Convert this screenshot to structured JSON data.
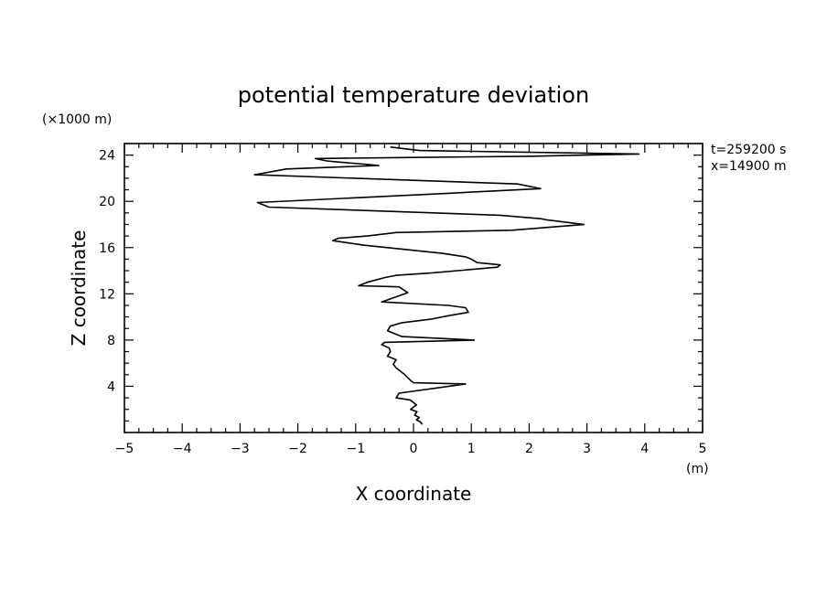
{
  "chart_data": {
    "type": "line",
    "title": "potential temperature deviation",
    "xlabel": "X coordinate",
    "ylabel": "Z coordinate",
    "x_unit": "(m)",
    "y_unit": "(×1000 m)",
    "annotations": [
      "t=259200 s",
      "x=14900 m"
    ],
    "xlim": [
      -5,
      5
    ],
    "ylim": [
      0,
      25
    ],
    "x_ticks": [
      -5,
      -4,
      -3,
      -2,
      -1,
      0,
      1,
      2,
      3,
      4,
      5
    ],
    "x_tick_labels": [
      "−5",
      "−4",
      "−3",
      "−2",
      "−1",
      "0",
      "1",
      "2",
      "3",
      "4",
      "5"
    ],
    "y_ticks": [
      4,
      8,
      12,
      16,
      20,
      24
    ],
    "y_tick_labels": [
      "4",
      "8",
      "12",
      "16",
      "20",
      "24"
    ],
    "grid": false,
    "color": "#000000",
    "series": [
      {
        "x": [
          0.15,
          0.12,
          0.05,
          0.1,
          0.02,
          0.06,
          -0.05,
          0.05,
          -0.05,
          -0.3,
          -0.25,
          0.9,
          0.0,
          -0.05,
          -0.15,
          -0.3,
          -0.35,
          -0.3,
          -0.45,
          -0.4,
          -0.42,
          -0.55,
          -0.5,
          1.05,
          -0.2,
          -0.45,
          -0.4,
          -0.2,
          0.3,
          0.6,
          0.95,
          0.9,
          0.6,
          -0.55,
          -0.1,
          -0.25,
          -0.95,
          -0.8,
          -0.5,
          -0.3,
          0.3,
          1.45,
          1.5,
          1.1,
          1.0,
          0.9,
          0.5,
          -0.85,
          -1.4,
          -1.3,
          -0.8,
          -0.3,
          1.7,
          2.95,
          2.3,
          2.2,
          1.5,
          -2.5,
          -2.7,
          0.6,
          2.2,
          1.8,
          -2.75,
          -2.2,
          -0.6,
          -0.8,
          -1.3,
          -1.5,
          -1.7,
          0.0,
          2.0,
          3.9,
          0.1,
          -0.4
        ],
        "y": [
          0.7,
          0.9,
          1.1,
          1.3,
          1.5,
          1.8,
          2.0,
          2.4,
          2.8,
          3.0,
          3.4,
          4.2,
          4.3,
          4.5,
          5.0,
          5.6,
          5.9,
          6.3,
          6.6,
          7.0,
          7.3,
          7.6,
          7.8,
          8.0,
          8.3,
          8.8,
          9.2,
          9.5,
          9.8,
          10.1,
          10.4,
          10.8,
          11.0,
          11.3,
          12.1,
          12.6,
          12.7,
          13.0,
          13.4,
          13.6,
          13.8,
          14.3,
          14.5,
          14.7,
          15.0,
          15.2,
          15.5,
          16.2,
          16.6,
          16.8,
          17.0,
          17.3,
          17.5,
          18.0,
          18.4,
          18.5,
          18.8,
          19.5,
          19.9,
          20.7,
          21.1,
          21.5,
          22.3,
          22.8,
          23.1,
          23.2,
          23.4,
          23.5,
          23.7,
          23.8,
          23.9,
          24.1,
          24.4,
          24.7
        ]
      }
    ]
  }
}
